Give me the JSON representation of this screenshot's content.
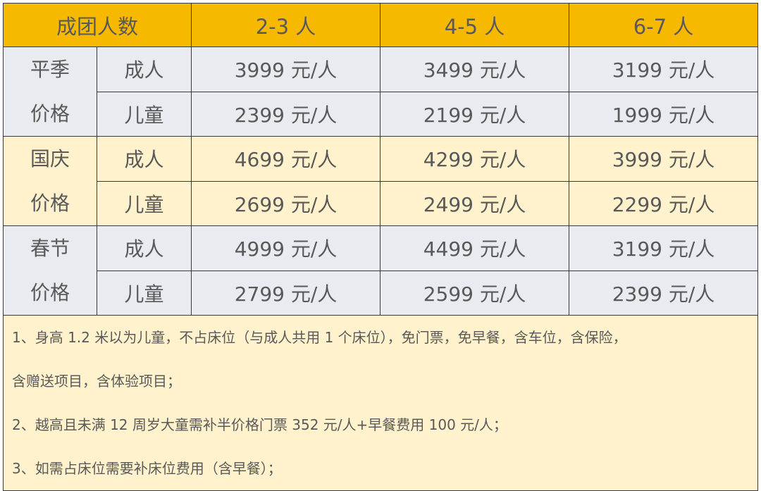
{
  "header": {
    "group_size_label": "成团人数",
    "columns": [
      "2-3 人",
      "4-5 人",
      "6-7 人"
    ]
  },
  "seasons": [
    {
      "name_line1": "平季",
      "name_line2": "价格",
      "rows": [
        {
          "type": "成人",
          "prices": [
            "3999 元/人",
            "3499 元/人",
            "3199 元/人"
          ]
        },
        {
          "type": "儿童",
          "prices": [
            "2399 元/人",
            "2199 元/人",
            "1999 元/人"
          ]
        }
      ]
    },
    {
      "name_line1": "国庆",
      "name_line2": "价格",
      "rows": [
        {
          "type": "成人",
          "prices": [
            "4699 元/人",
            "4299 元/人",
            "3999 元/人"
          ]
        },
        {
          "type": "儿童",
          "prices": [
            "2699 元/人",
            "2499 元/人",
            "2299 元/人"
          ]
        }
      ]
    },
    {
      "name_line1": "春节",
      "name_line2": "价格",
      "rows": [
        {
          "type": "成人",
          "prices": [
            "4999 元/人",
            "4499 元/人",
            "3199 元/人"
          ]
        },
        {
          "type": "儿童",
          "prices": [
            "2799 元/人",
            "2599 元/人",
            "2399 元/人"
          ]
        }
      ]
    }
  ],
  "notes": [
    "1、身高 1.2 米以为儿童，不占床位（与成人共用 1 个床位），免门票，免早餐，含车位，含保险，",
    "含赠送项目，含体验项目；",
    "2、越高且未满 12 周岁大童需补半价格门票 352 元/人+早餐费用 100 元/人；",
    "3、如需占床位需要补床位费用（含早餐）；"
  ],
  "colors": {
    "header": "#f6b900",
    "gray_row": "#e8ebef",
    "yellow_row": "#fff2cc",
    "text": "#595959"
  }
}
